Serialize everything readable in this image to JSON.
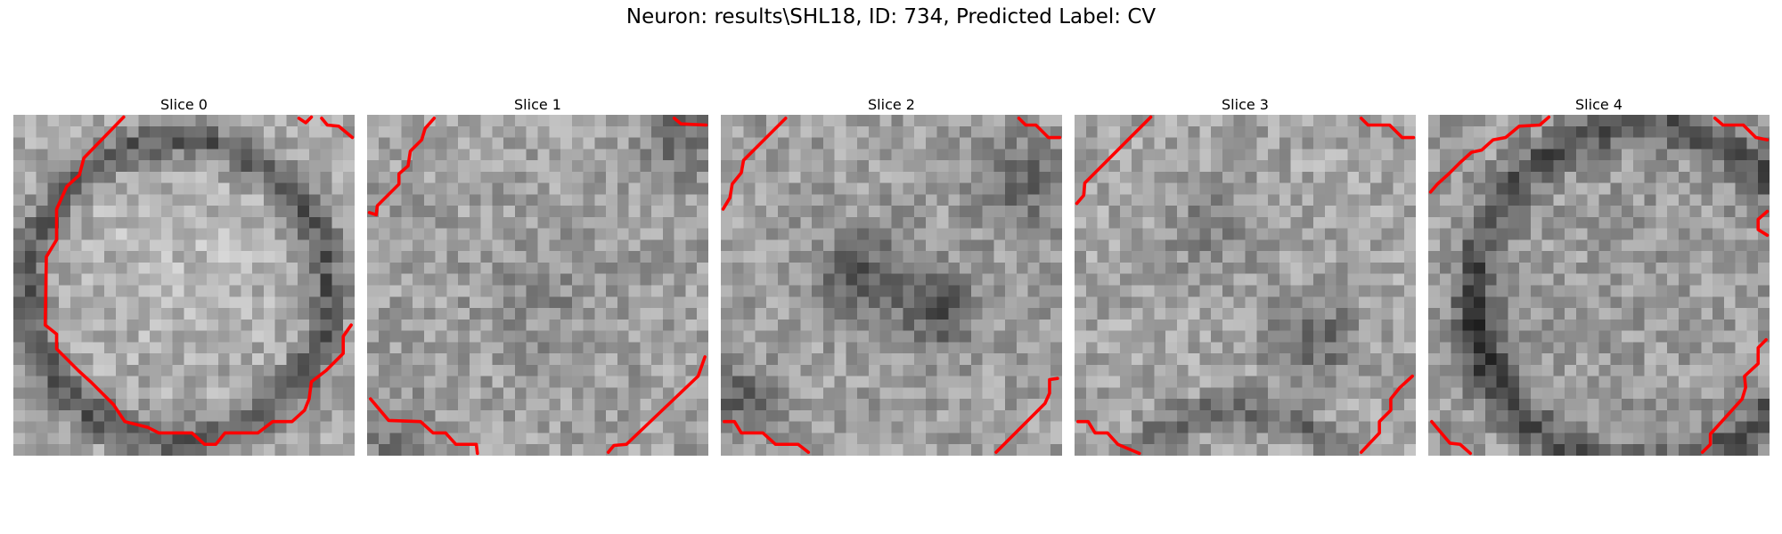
{
  "figure": {
    "title": "Neuron: results\\SHL18, ID: 734, Predicted Label: CV"
  },
  "slices": [
    {
      "title": "Slice 0"
    },
    {
      "title": "Slice 1"
    },
    {
      "title": "Slice 2"
    },
    {
      "title": "Slice 3"
    },
    {
      "title": "Slice 4"
    }
  ],
  "colors": {
    "contour": "#ff0000",
    "colormap": "grayscale"
  }
}
